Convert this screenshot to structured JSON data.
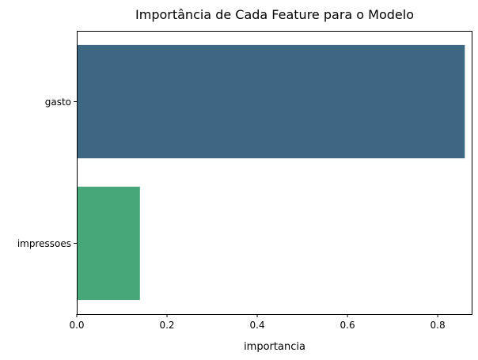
{
  "chart_data": {
    "type": "bar",
    "orientation": "horizontal",
    "title": "Importância de Cada Feature para o Modelo",
    "xlabel": "importancia",
    "ylabel": "",
    "categories": [
      "gasto",
      "impressoes"
    ],
    "values": [
      0.86,
      0.14
    ],
    "colors": [
      "#3e6784",
      "#48a779"
    ],
    "xlim": [
      0,
      0.877
    ],
    "xticks": [
      0.0,
      0.2,
      0.4,
      0.6,
      0.8
    ],
    "xtick_labels": [
      "0.0",
      "0.2",
      "0.4",
      "0.6",
      "0.8"
    ],
    "grid": false,
    "legend": "none"
  }
}
